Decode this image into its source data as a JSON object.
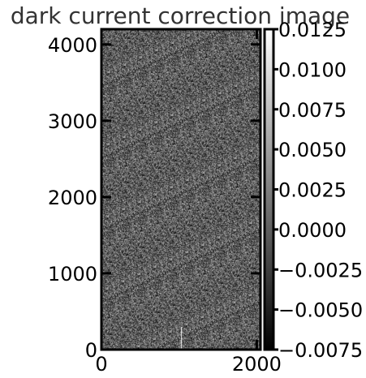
{
  "chart_data": {
    "type": "heatmap",
    "title": "dark current correction image",
    "xlabel": "",
    "ylabel": "",
    "xlim": [
      0,
      2048
    ],
    "ylim": [
      0,
      4200
    ],
    "x_ticks": [
      {
        "value": 0,
        "label": "0"
      },
      {
        "value": 2000,
        "label": "2000"
      }
    ],
    "y_ticks": [
      {
        "value": 0,
        "label": "0"
      },
      {
        "value": 1000,
        "label": "1000"
      },
      {
        "value": 2000,
        "label": "2000"
      },
      {
        "value": 3000,
        "label": "3000"
      },
      {
        "value": 4000,
        "label": "4000"
      }
    ],
    "colormap": "gray",
    "color_range": [
      -0.0075,
      0.0125
    ],
    "colorbar_ticks": [
      {
        "value": 0.0125,
        "label": "0.0125"
      },
      {
        "value": 0.01,
        "label": "0.0100"
      },
      {
        "value": 0.0075,
        "label": "0.0075"
      },
      {
        "value": 0.005,
        "label": "0.0050"
      },
      {
        "value": 0.0025,
        "label": "0.0025"
      },
      {
        "value": 0,
        "label": "0.0000"
      },
      {
        "value": -0.0025,
        "label": "−0.0025"
      },
      {
        "value": -0.005,
        "label": "−0.0050"
      },
      {
        "value": -0.0075,
        "label": "−0.0075"
      }
    ],
    "noise_mean": 0,
    "noise_std": 0.0035,
    "features": [
      {
        "type": "bright-streak",
        "x": 1020,
        "y_range": [
          0,
          300
        ]
      }
    ],
    "grid": false
  }
}
